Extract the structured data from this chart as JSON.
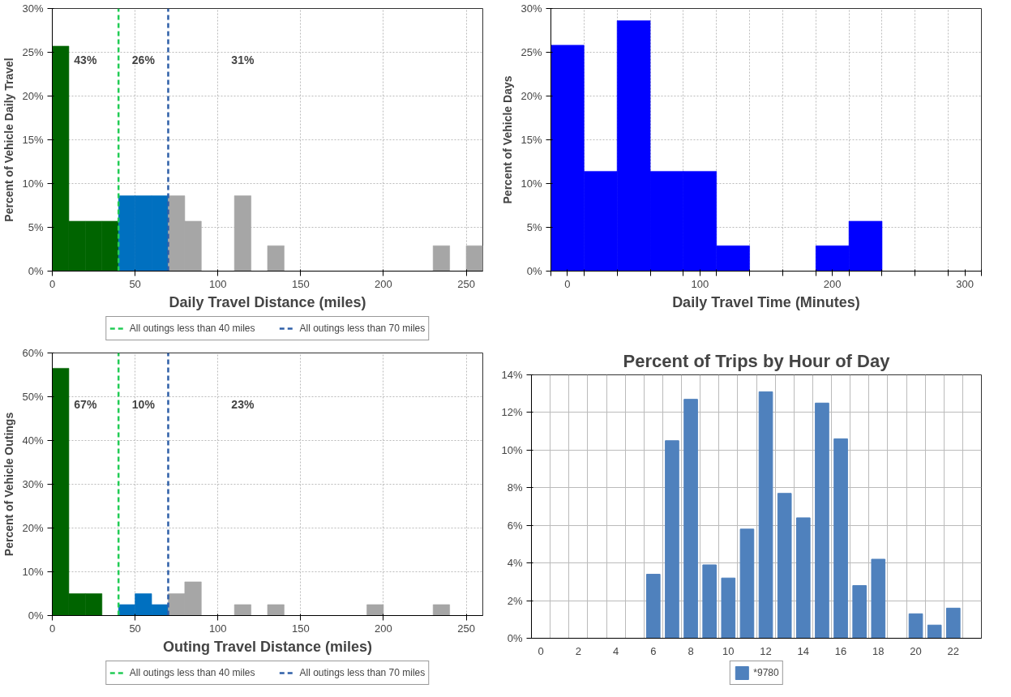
{
  "chart_data": [
    {
      "type": "histogram",
      "xlabel": "Daily Travel Distance (miles)",
      "ylabel": "Percent of Vehicle Daily Travel",
      "bins": [
        0,
        10,
        20,
        30,
        40,
        50,
        60,
        70,
        80,
        90,
        100,
        110,
        120,
        130,
        140,
        150,
        160,
        170,
        180,
        190,
        200,
        210,
        220,
        230,
        240,
        250,
        260
      ],
      "values": [
        25.7,
        5.7,
        5.7,
        5.7,
        8.6,
        8.6,
        8.6,
        8.6,
        5.7,
        0,
        0,
        8.6,
        0,
        2.9,
        0,
        0,
        0,
        0,
        0,
        0,
        0,
        0,
        0,
        2.9,
        0,
        2.9
      ],
      "colors": [
        "#006400",
        "#006400",
        "#006400",
        "#006400",
        "#0070c0",
        "#0070c0",
        "#0070c0",
        "#a6a6a6",
        "#a6a6a6",
        "#a6a6a6",
        "#a6a6a6",
        "#a6a6a6",
        "#a6a6a6",
        "#a6a6a6",
        "#a6a6a6",
        "#a6a6a6",
        "#a6a6a6",
        "#a6a6a6",
        "#a6a6a6",
        "#a6a6a6",
        "#a6a6a6",
        "#a6a6a6",
        "#a6a6a6",
        "#a6a6a6",
        "#a6a6a6",
        "#a6a6a6"
      ],
      "xlim": [
        0,
        260
      ],
      "xticks": [
        0,
        50,
        100,
        150,
        200,
        250
      ],
      "ylim": [
        0,
        30
      ],
      "yticks": [
        {
          "value": 0,
          "label": "0%"
        },
        {
          "value": 5,
          "label": "5%"
        },
        {
          "value": 10,
          "label": "10%"
        },
        {
          "value": 15,
          "label": "15%"
        },
        {
          "value": 20,
          "label": "20%"
        },
        {
          "value": 25,
          "label": "25%"
        },
        {
          "value": 30,
          "label": "30%"
        }
      ],
      "ref_lines": [
        {
          "axis": "x",
          "value": 40,
          "label": "All outings less than 40 miles",
          "color": "#22cc55",
          "line_style": "dashed"
        },
        {
          "axis": "x",
          "value": 70,
          "label": "All outings less than 70 miles",
          "color": "#2e5fa8",
          "line_style": "dashed"
        }
      ],
      "annotations": [
        "43%",
        "26%",
        "31%"
      ],
      "grid": true,
      "legend": "bottom"
    },
    {
      "type": "histogram",
      "xlabel": "Daily Travel Time (Minutes)",
      "ylabel": "Percent of Vehicle Days",
      "bins": [
        -12.5,
        12.5,
        37.5,
        62.5,
        87.5,
        112.5,
        137.5,
        162.5,
        187.5,
        212.5,
        237.5,
        262.5,
        287.5,
        312.5
      ],
      "values": [
        25.8,
        11.4,
        28.6,
        11.4,
        11.4,
        2.9,
        0,
        0,
        2.9,
        5.7,
        0,
        0,
        0
      ],
      "color": "#0000ff",
      "xlim": [
        -12.5,
        312.5
      ],
      "xticks": [
        {
          "value": -12.5,
          "label": null
        },
        {
          "value": 0,
          "label": "0"
        },
        {
          "value": 12.5,
          "label": null
        },
        {
          "value": 37.5,
          "label": null
        },
        {
          "value": 62.5,
          "label": null
        },
        {
          "value": 87.5,
          "label": null
        },
        {
          "value": 100,
          "label": "100"
        },
        {
          "value": 112.5,
          "label": null
        },
        {
          "value": 137.5,
          "label": null
        },
        {
          "value": 162.5,
          "label": null
        },
        {
          "value": 187.5,
          "label": null
        },
        {
          "value": 200,
          "label": "200"
        },
        {
          "value": 212.5,
          "label": null
        },
        {
          "value": 237.5,
          "label": null
        },
        {
          "value": 262.5,
          "label": null
        },
        {
          "value": 287.5,
          "label": null
        },
        {
          "value": 300,
          "label": "300"
        },
        {
          "value": 312.5,
          "label": null
        }
      ],
      "ylim": [
        0,
        30
      ],
      "yticks": [
        {
          "value": 0,
          "label": "0%"
        },
        {
          "value": 5,
          "label": "5%"
        },
        {
          "value": 10,
          "label": "10%"
        },
        {
          "value": 15,
          "label": "15%"
        },
        {
          "value": 20,
          "label": "20%"
        },
        {
          "value": 25,
          "label": "25%"
        },
        {
          "value": 30,
          "label": "30%"
        }
      ],
      "grid": true
    },
    {
      "type": "histogram",
      "xlabel": "Outing Travel Distance (miles)",
      "ylabel": "Percent of Vehicle Outings",
      "bins": [
        0,
        10,
        20,
        30,
        40,
        50,
        60,
        70,
        80,
        90,
        100,
        110,
        120,
        130,
        140,
        150,
        160,
        170,
        180,
        190,
        200,
        210,
        220,
        230,
        240
      ],
      "values": [
        56.5,
        5,
        5,
        0,
        2.5,
        5,
        2.5,
        5,
        7.7,
        0,
        0,
        2.5,
        0,
        2.5,
        0,
        0,
        0,
        0,
        0,
        2.5,
        0,
        0,
        0,
        2.5
      ],
      "colors": [
        "#006400",
        "#006400",
        "#006400",
        "#006400",
        "#0070c0",
        "#0070c0",
        "#0070c0",
        "#a6a6a6",
        "#a6a6a6",
        "#a6a6a6",
        "#a6a6a6",
        "#a6a6a6",
        "#a6a6a6",
        "#a6a6a6",
        "#a6a6a6",
        "#a6a6a6",
        "#a6a6a6",
        "#a6a6a6",
        "#a6a6a6",
        "#a6a6a6",
        "#a6a6a6",
        "#a6a6a6",
        "#a6a6a6",
        "#a6a6a6"
      ],
      "xlim": [
        0,
        260
      ],
      "xticks": [
        0,
        50,
        100,
        150,
        200,
        250
      ],
      "ylim": [
        0,
        60
      ],
      "yticks": [
        {
          "value": 0,
          "label": "0%"
        },
        {
          "value": 10,
          "label": "10%"
        },
        {
          "value": 20,
          "label": "20%"
        },
        {
          "value": 30,
          "label": "30%"
        },
        {
          "value": 40,
          "label": "40%"
        },
        {
          "value": 50,
          "label": "50%"
        },
        {
          "value": 60,
          "label": "60%"
        }
      ],
      "ref_lines": [
        {
          "axis": "x",
          "value": 40,
          "label": "All outings less than 40 miles",
          "color": "#22cc55",
          "line_style": "dashed"
        },
        {
          "axis": "x",
          "value": 70,
          "label": "All outings less than 70 miles",
          "color": "#2e5fa8",
          "line_style": "dashed"
        }
      ],
      "annotations": [
        "67%",
        "10%",
        "23%"
      ],
      "grid": true,
      "legend": "bottom"
    },
    {
      "type": "bar",
      "title": "Percent of Trips by Hour of Day",
      "categories": [
        "0",
        null,
        "2",
        null,
        "4",
        null,
        "6",
        null,
        "8",
        null,
        "10",
        null,
        "12",
        null,
        "14",
        null,
        "16",
        null,
        "18",
        null,
        "20",
        null,
        "22",
        null
      ],
      "series": [
        {
          "name": "*9780",
          "color": "#4f81bd",
          "values": [
            null,
            null,
            null,
            null,
            null,
            null,
            3.4,
            10.5,
            12.7,
            3.9,
            3.2,
            5.8,
            13.1,
            7.7,
            6.4,
            12.5,
            10.6,
            2.8,
            4.2,
            null,
            1.3,
            0.7,
            1.6,
            null
          ]
        }
      ],
      "ylim": [
        0,
        14
      ],
      "yticks": [
        {
          "value": 0,
          "label": "0%"
        },
        {
          "value": 2,
          "label": "2%"
        },
        {
          "value": 4,
          "label": "4%"
        },
        {
          "value": 6,
          "label": "6%"
        },
        {
          "value": 8,
          "label": "8%"
        },
        {
          "value": 10,
          "label": "10%"
        },
        {
          "value": 12,
          "label": "12%"
        },
        {
          "value": 14,
          "label": "14%"
        }
      ],
      "grid": true,
      "legend": "bottom"
    }
  ]
}
